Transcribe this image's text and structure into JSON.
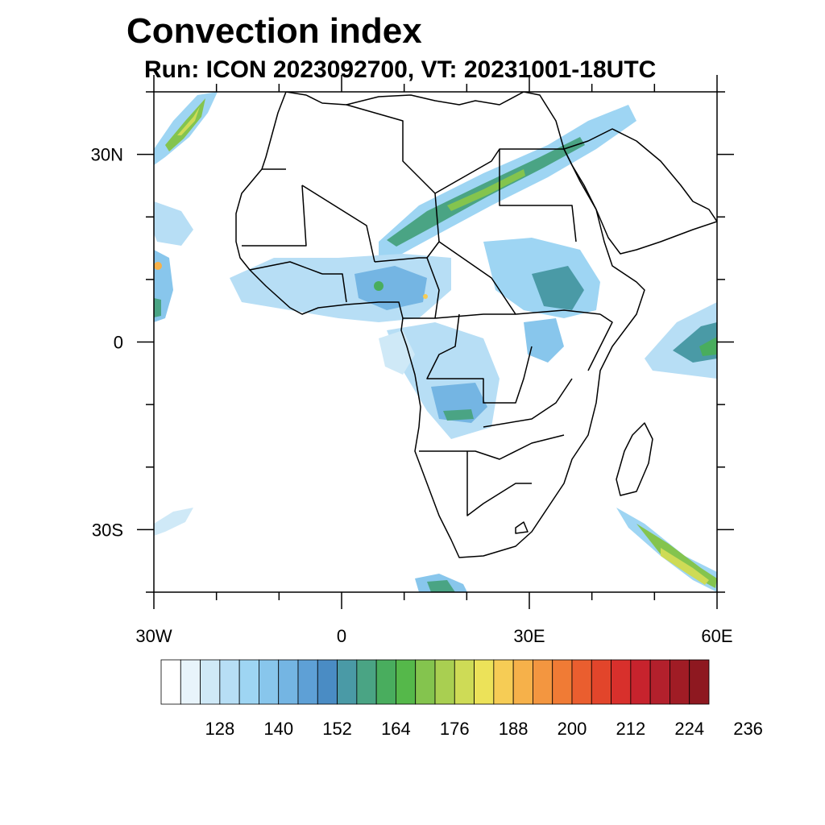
{
  "title": "Convection index",
  "subtitle": "Run: ICON 2023092700,  VT: 20231001-18UTC",
  "map": {
    "region": "Africa",
    "lat_range": [
      -40,
      40
    ],
    "lon_range": [
      -30,
      60
    ],
    "lat_ticks": [
      {
        "lat": 30,
        "label": "30N"
      },
      {
        "lat": 0,
        "label": "0"
      },
      {
        "lat": -30,
        "label": "30S"
      }
    ],
    "lon_ticks": [
      {
        "lon": -30,
        "label": "30W"
      },
      {
        "lon": 0,
        "label": "0"
      },
      {
        "lon": 30,
        "label": "30E"
      },
      {
        "lon": 60,
        "label": "60E"
      }
    ],
    "minor_lat_ticks": [
      40,
      20,
      10,
      -10,
      -20,
      -40
    ],
    "minor_lon_ticks": [
      -20,
      -10,
      10,
      20,
      40,
      50
    ]
  },
  "colorbar": {
    "colors": [
      "#ffffff",
      "#e8f4fb",
      "#cfe9f7",
      "#b7def5",
      "#9ed5f3",
      "#88c6ec",
      "#74b5e3",
      "#5ea0d6",
      "#4a8cc4",
      "#4a9aa6",
      "#4aa484",
      "#49ad5e",
      "#55b84a",
      "#84c44e",
      "#a9cf51",
      "#cedb56",
      "#ece259",
      "#f6cc55",
      "#f6b14a",
      "#f39640",
      "#f07b35",
      "#ea5e2f",
      "#e2452b",
      "#d8302c",
      "#c7232d",
      "#b3202c",
      "#a01c25",
      "#8e1820"
    ],
    "labels": [
      "128",
      "140",
      "152",
      "164",
      "176",
      "188",
      "200",
      "212",
      "224",
      "236"
    ]
  }
}
